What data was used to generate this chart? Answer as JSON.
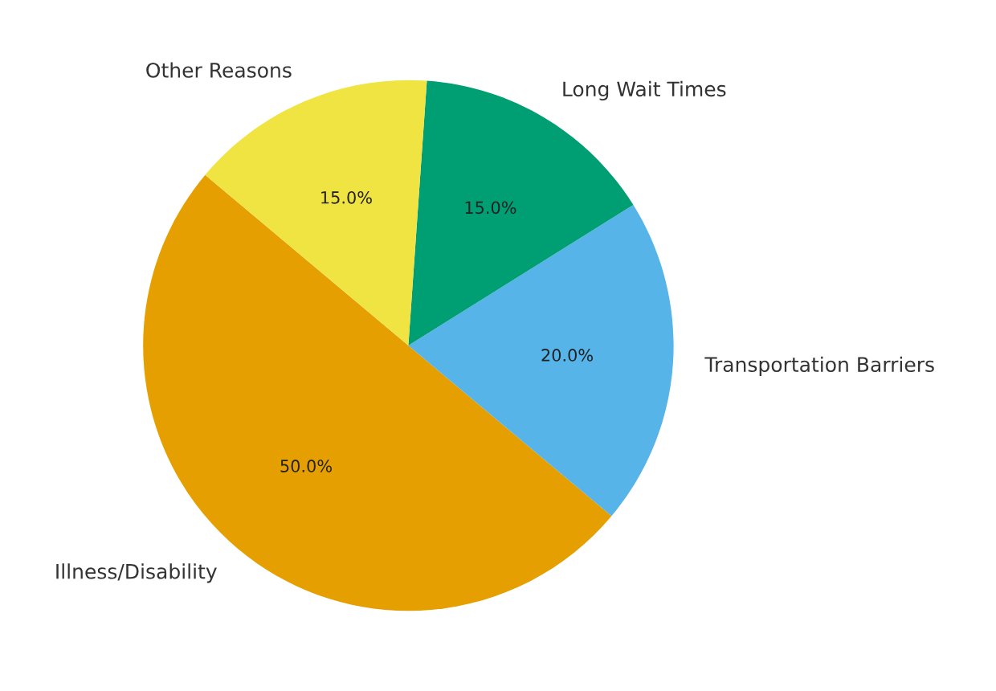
{
  "chart_data": {
    "type": "pie",
    "categories": [
      "Illness/Disability",
      "Transportation Barriers",
      "Long Wait Times",
      "Other Reasons"
    ],
    "values": [
      50,
      20,
      15,
      15
    ],
    "colors": [
      "#e69f00",
      "#56b4e9",
      "#009e73",
      "#f0e442"
    ],
    "value_labels": [
      "50.0%",
      "20.0%",
      "15.0%",
      "15.0%"
    ]
  }
}
